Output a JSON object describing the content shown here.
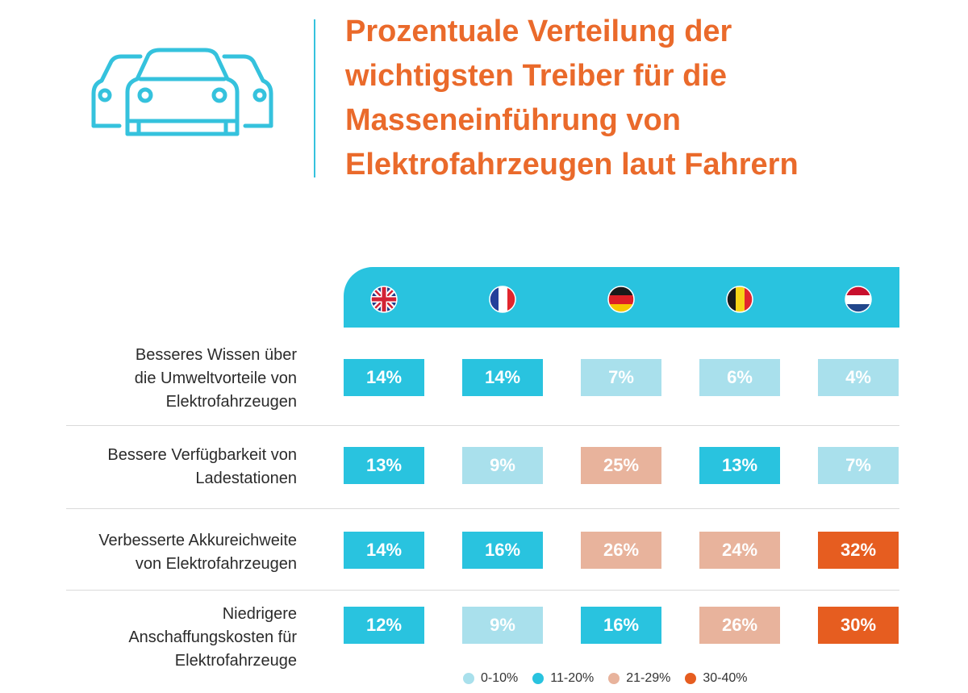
{
  "title_lines": [
    "Prozentuale Verteilung der",
    "wichtigsten Treiber für die",
    "Masseneinführung von",
    "Elektrofahrzeugen laut Fahrern"
  ],
  "colors": {
    "title": "#ea6a2b",
    "header_band": "#29c3df",
    "icon": "#35c2dd",
    "bin_0_10": "#a9e0ec",
    "bin_11_20": "#29c3df",
    "bin_21_29": "#e8b39c",
    "bin_30_40": "#e65d20"
  },
  "icons": [
    "cars-icon",
    "flag-uk-icon",
    "flag-france-icon",
    "flag-germany-icon",
    "flag-belgium-icon",
    "flag-netherlands-icon"
  ],
  "chart_data": {
    "type": "table",
    "columns": [
      "UK",
      "Frankreich",
      "Deutschland",
      "Belgien",
      "Niederlande"
    ],
    "rows": [
      {
        "label_lines": [
          "Besseres Wissen über",
          "die Umweltvorteile von",
          "Elektrofahrzeugen"
        ],
        "values": [
          14,
          14,
          7,
          6,
          4
        ],
        "labels": [
          "14%",
          "14%",
          "7%",
          "6%",
          "4%"
        ]
      },
      {
        "label_lines": [
          "Bessere Verfügbarkeit von",
          "Ladestationen"
        ],
        "values": [
          13,
          9,
          25,
          13,
          7
        ],
        "labels": [
          "13%",
          "9%",
          "25%",
          "13%",
          "7%"
        ]
      },
      {
        "label_lines": [
          "Verbesserte Akkureichweite",
          "von Elektrofahrzeugen"
        ],
        "values": [
          14,
          16,
          26,
          24,
          32
        ],
        "labels": [
          "14%",
          "16%",
          "26%",
          "24%",
          "32%"
        ]
      },
      {
        "label_lines": [
          "Niedrigere",
          "Anschaffungskosten für",
          "Elektrofahrzeuge"
        ],
        "values": [
          12,
          9,
          16,
          26,
          30
        ],
        "labels": [
          "12%",
          "9%",
          "16%",
          "26%",
          "30%"
        ]
      }
    ],
    "legend": [
      {
        "label": "0-10%",
        "color": "#a9e0ec"
      },
      {
        "label": "11-20%",
        "color": "#29c3df"
      },
      {
        "label": "21-29%",
        "color": "#e8b39c"
      },
      {
        "label": "30-40%",
        "color": "#e65d20"
      }
    ]
  }
}
